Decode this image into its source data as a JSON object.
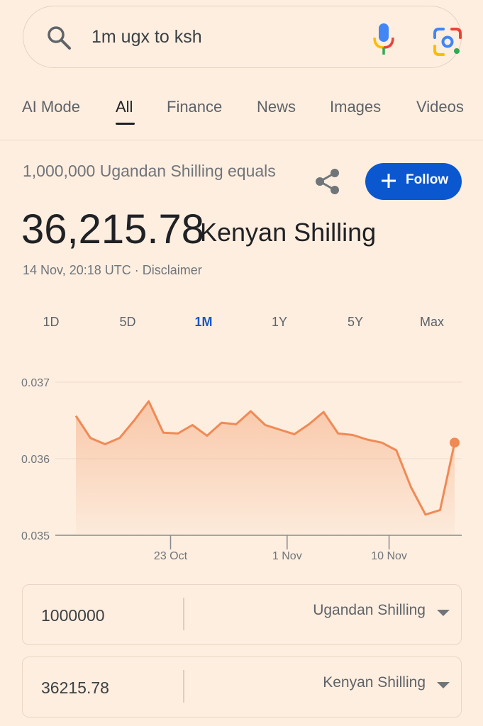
{
  "search": {
    "query": "1m ugx to ksh"
  },
  "tabs": [
    {
      "label": "AI Mode"
    },
    {
      "label": "All",
      "active": true
    },
    {
      "label": "Finance"
    },
    {
      "label": "News"
    },
    {
      "label": "Images"
    },
    {
      "label": "Videos"
    }
  ],
  "result": {
    "equals_text": "1,000,000 Ugandan Shilling equals",
    "rate": "36,215.78",
    "unit": "Kenyan Shilling",
    "timestamp": "14 Nov, 20:18 UTC · Disclaimer",
    "follow_label": "Follow"
  },
  "ranges": [
    "1D",
    "5D",
    "1M",
    "1Y",
    "5Y",
    "Max"
  ],
  "active_range": "1M",
  "colors": {
    "accent": "#f08a55",
    "follow": "#0b57d0",
    "active_range": "#1a56c4"
  },
  "chart_data": {
    "type": "area",
    "y_ticks": [
      "0.037",
      "0.036",
      "0.035"
    ],
    "ylim": [
      0.035,
      0.037
    ],
    "x_ticks": [
      {
        "label": "23 Oct",
        "index": 6.5
      },
      {
        "label": "1 Nov",
        "index": 14.5
      },
      {
        "label": "10 Nov",
        "index": 21.5
      }
    ],
    "values": [
      0.03656,
      0.03627,
      0.03619,
      0.03627,
      0.0365,
      0.03675,
      0.03634,
      0.03633,
      0.03644,
      0.0363,
      0.03647,
      0.03645,
      0.03662,
      0.03644,
      0.03638,
      0.03632,
      0.03645,
      0.03661,
      0.03633,
      0.03631,
      0.03625,
      0.03621,
      0.03611,
      0.03563,
      0.03527,
      0.03533,
      0.03621
    ]
  },
  "converter": {
    "from": {
      "value": "1000000",
      "currency": "Ugandan Shilling"
    },
    "to": {
      "value": "36215.78",
      "currency": "Kenyan Shilling"
    }
  }
}
